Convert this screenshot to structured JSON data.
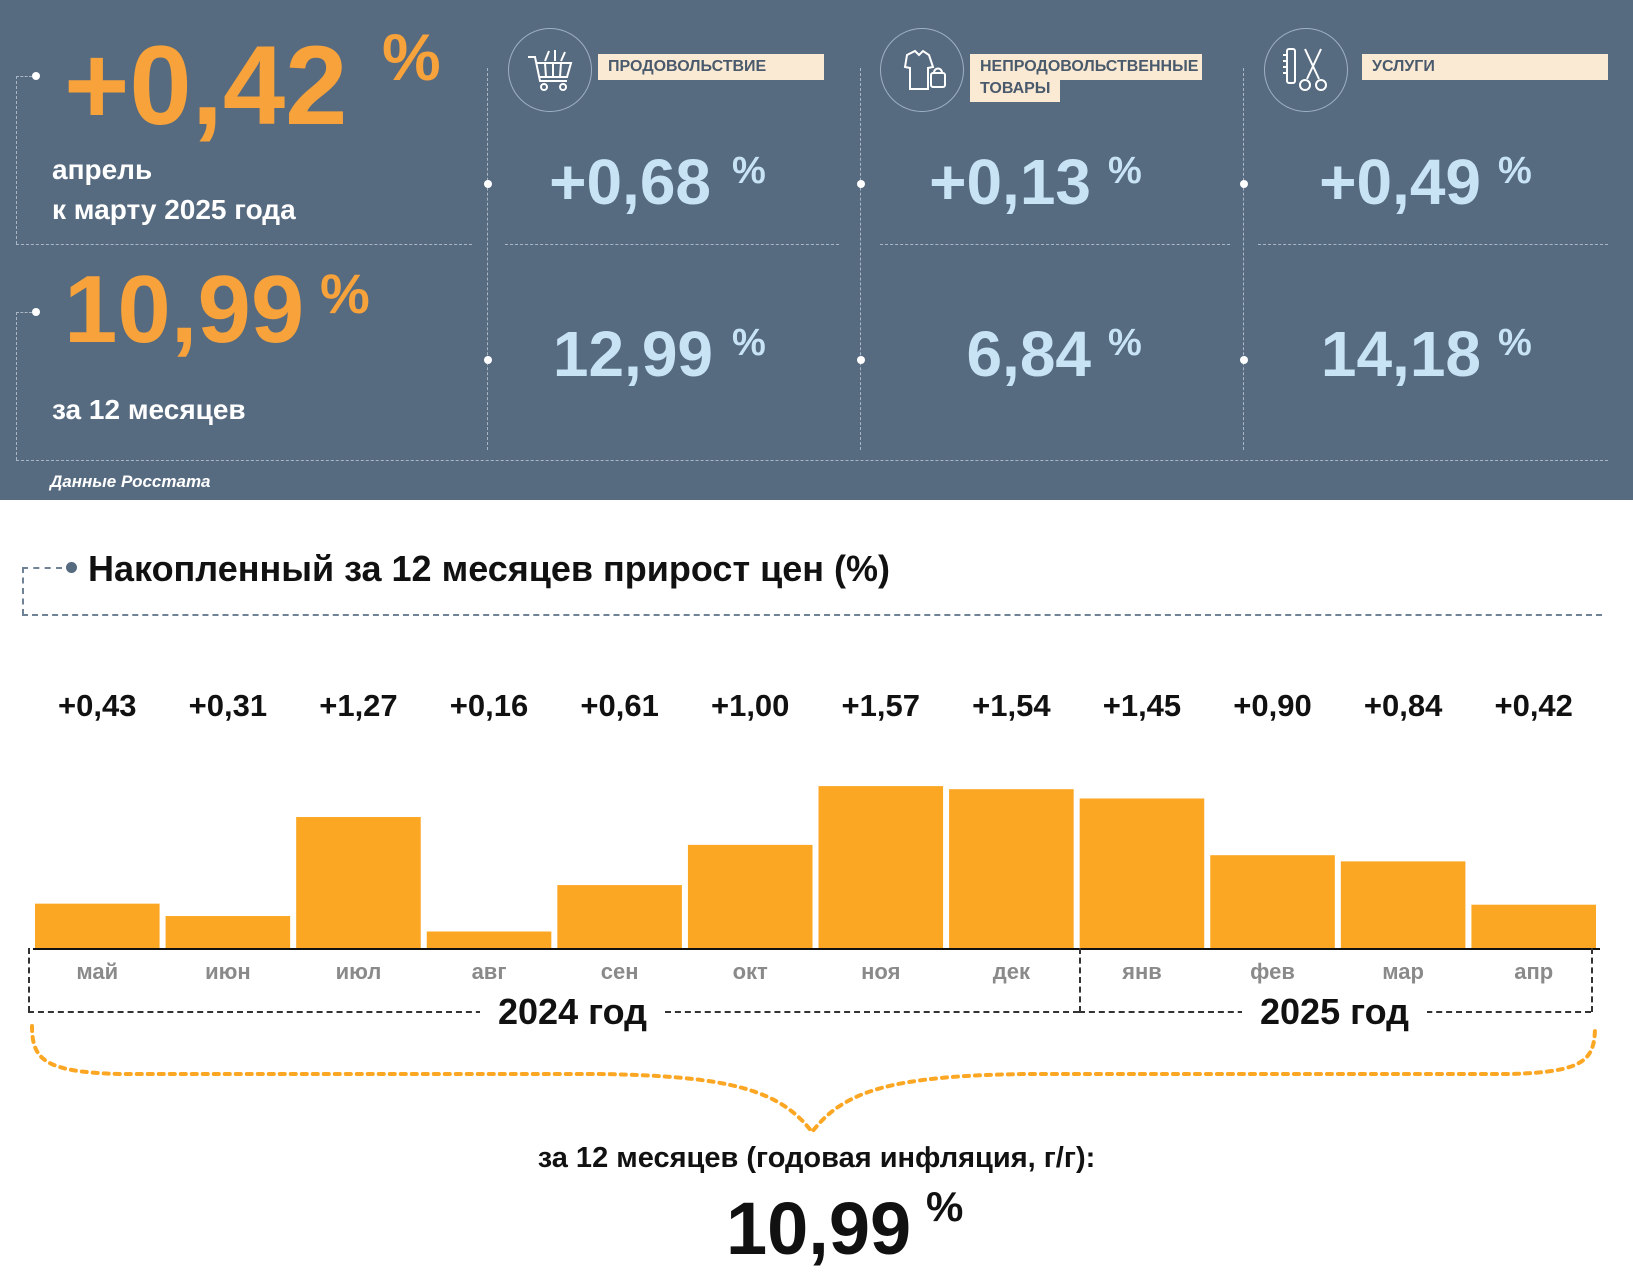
{
  "headline": {
    "monthly_value": "+0,42",
    "monthly_pct": "%",
    "monthly_line1": "апрель",
    "monthly_line2": "к марту 2025 года",
    "annual_value": "10,99",
    "annual_pct": "%",
    "annual_caption": "за 12 месяцев"
  },
  "categories": [
    {
      "label": "ПРОДОВОЛЬСТВИЕ",
      "icon": "shopping-cart-icon",
      "monthly": "+0,68",
      "annual": "12,99",
      "pct": "%"
    },
    {
      "label_line1": "НЕПРОДОВОЛЬСТВЕННЫЕ",
      "label_line2": "ТОВАРЫ",
      "icon": "clothing-bag-icon",
      "monthly": "+0,13",
      "annual": "6,84",
      "pct": "%"
    },
    {
      "label": "УСЛУГИ",
      "icon": "comb-scissors-icon",
      "monthly": "+0,49",
      "annual": "14,18",
      "pct": "%"
    }
  ],
  "source": "Данные Росстата",
  "chart": {
    "title": "Накопленный за 12 месяцев прирост цен (%)",
    "year_2024": "2024 год",
    "year_2025": "2025 год",
    "summary_label": "за 12 месяцев (годовая инфляция, г/г):",
    "summary_value": "10,99",
    "summary_pct": "%"
  },
  "chart_data": {
    "type": "bar",
    "title": "Накопленный за 12 месяцев прирост цен (%)",
    "categories": [
      "май",
      "июн",
      "июл",
      "авг",
      "сен",
      "окт",
      "ноя",
      "дек",
      "янв",
      "фев",
      "мар",
      "апр"
    ],
    "values": [
      0.43,
      0.31,
      1.27,
      0.16,
      0.61,
      1.0,
      1.57,
      1.54,
      1.45,
      0.9,
      0.84,
      0.42
    ],
    "labels": [
      "+0,43",
      "+0,31",
      "+1,27",
      "+0,16",
      "+0,61",
      "+1,00",
      "+1,57",
      "+1,54",
      "+1,45",
      "+0,90",
      "+0,84",
      "+0,42"
    ],
    "year_groups": [
      {
        "label": "2024 год",
        "months": [
          "май",
          "июн",
          "июл",
          "авг",
          "сен",
          "окт",
          "ноя",
          "дек"
        ]
      },
      {
        "label": "2025 год",
        "months": [
          "янв",
          "фев",
          "мар",
          "апр"
        ]
      }
    ],
    "total": "10,99",
    "xlabel": "",
    "ylabel": "",
    "grid": false,
    "legend": "none"
  },
  "colors": {
    "panel_bg": "#566a80",
    "accent_orange": "#f7a23a",
    "bar_orange": "#fca724",
    "value_blue": "#c7e3f4",
    "label_bg": "#fbead3"
  }
}
